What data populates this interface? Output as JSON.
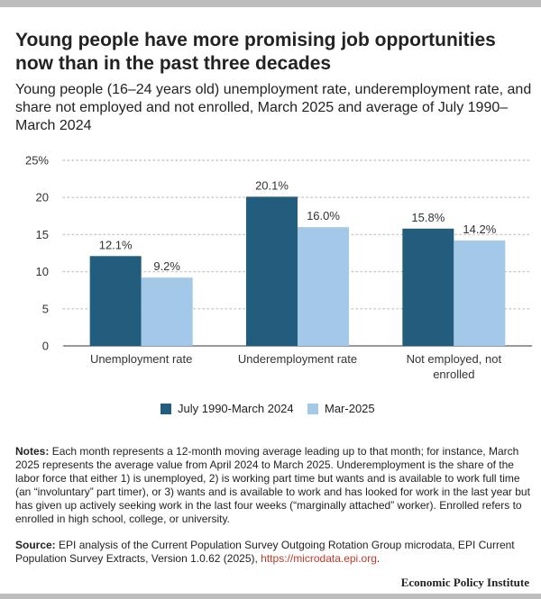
{
  "header": {
    "title": "Young people have more promising job opportunities now than in the past three decades",
    "subtitle": "Young people (16–24 years old) unemployment rate, underemployment rate, and share not employed and not enrolled, March 2025 and average of July 1990–March 2024"
  },
  "chart_data": {
    "type": "bar",
    "categories": [
      "Unemployment rate",
      "Underemployment rate",
      "Not employed, not enrolled"
    ],
    "category_lines": [
      [
        "Unemployment rate"
      ],
      [
        "Underemployment rate"
      ],
      [
        "Not employed, not",
        "enrolled"
      ]
    ],
    "series": [
      {
        "name": "July 1990-March 2024",
        "values": [
          12.1,
          20.1,
          15.8
        ],
        "labels": [
          "12.1%",
          "20.1%",
          "15.8%"
        ],
        "color": "#235d7e"
      },
      {
        "name": "Mar-2025",
        "values": [
          9.2,
          16.0,
          14.2
        ],
        "labels": [
          "9.2%",
          "16.0%",
          "14.2%"
        ],
        "color": "#a3c8e8"
      }
    ],
    "y_ticks": [
      0,
      5,
      10,
      15,
      20,
      25
    ],
    "y_tick_labels": [
      "0",
      "5",
      "10",
      "15",
      "20",
      "25%"
    ],
    "ylim": [
      0,
      25
    ],
    "grid": true,
    "legend": "bottom-center"
  },
  "notes": {
    "label": "Notes:",
    "text": "Each month represents a 12-month moving average leading up to that month; for instance, March 2025 represents the average value from April 2024 to March 2025. Underemployment is the share of the labor force that either 1) is unemployed, 2) is working part time but wants and is available to work full time (an “involuntary” part timer), or 3) wants and is available to work and has looked for work in the last year but has given up actively seeking work in the last four weeks (“marginally attached” worker). Enrolled refers to enrolled in high school, college, or university."
  },
  "source": {
    "label": "Source:",
    "text": "EPI analysis of the Current Population Survey Outgoing Rotation Group microdata, EPI Current Population Survey Extracts, Version 1.0.62 (2025),",
    "link": "https://microdata.epi.org",
    "end": "."
  },
  "footer": {
    "brand": "Economic Policy Institute"
  }
}
